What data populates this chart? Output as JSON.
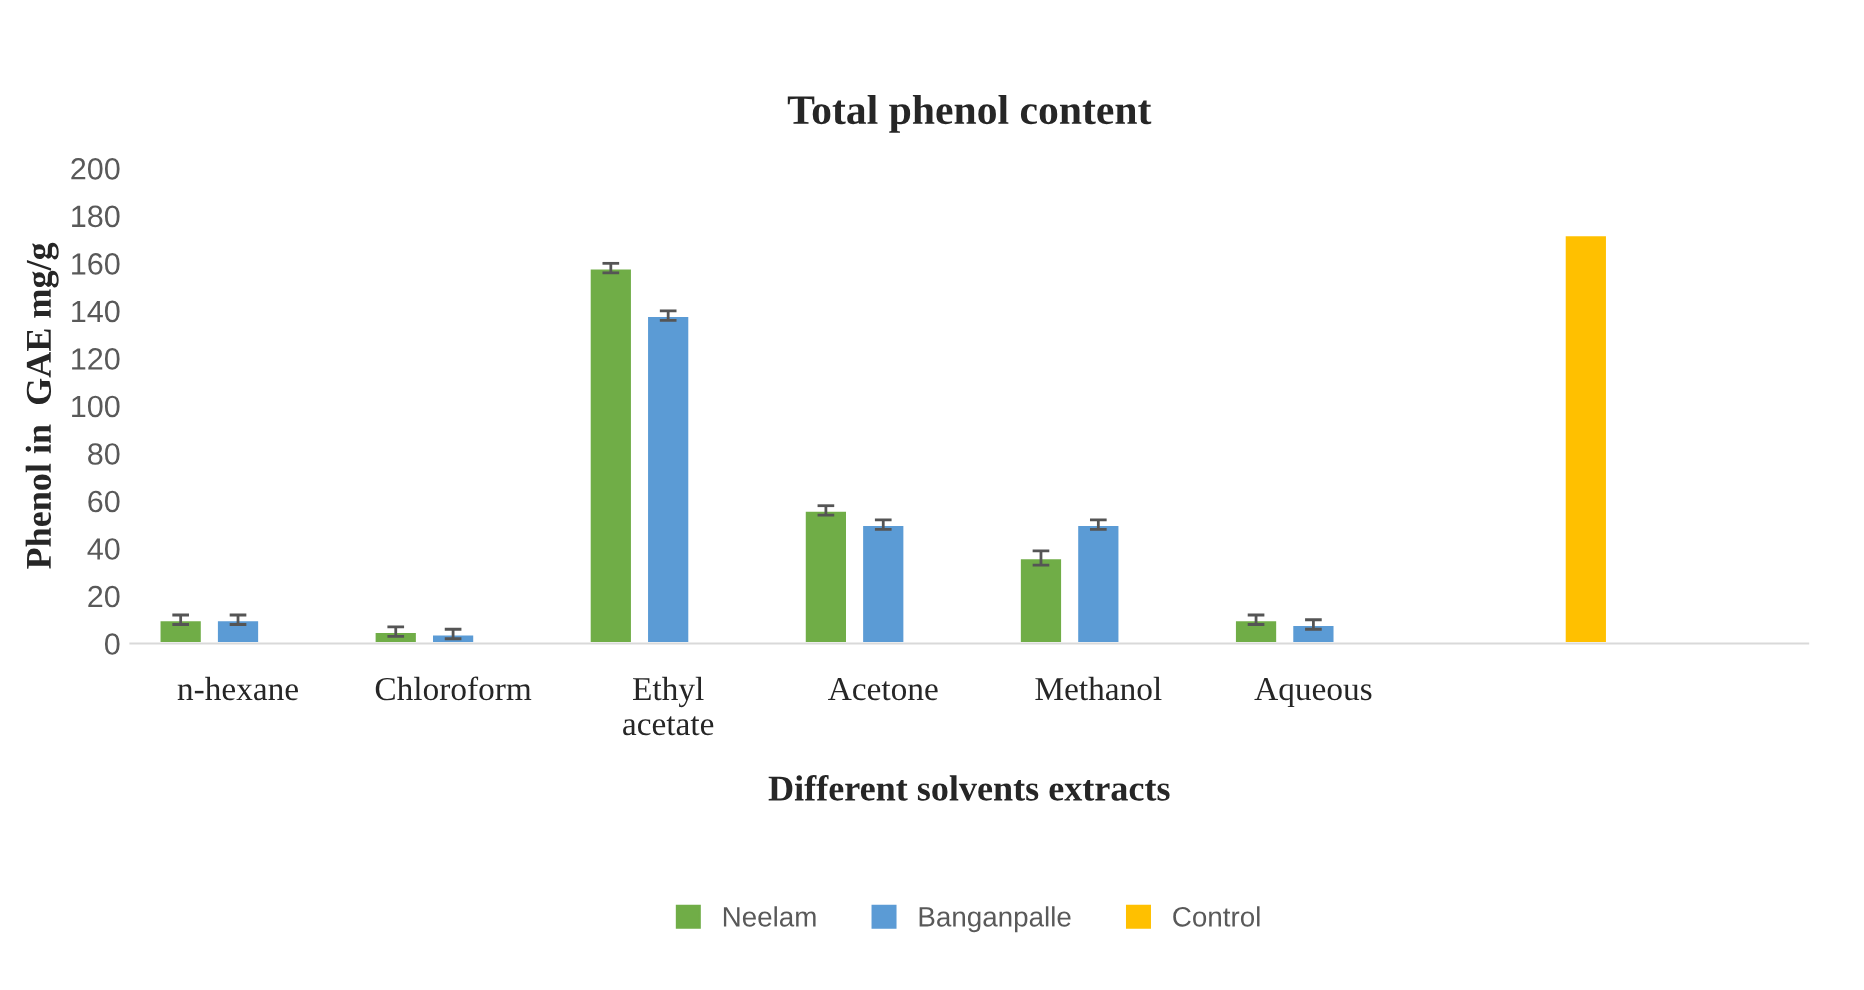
{
  "chart_data": {
    "type": "bar",
    "title": "Total phenol content",
    "xlabel": "Different solvents extracts",
    "ylabel": "Phenol in  GAE mg/g",
    "categories": [
      "n-hexane",
      "Chloroform",
      "Ethyl acetate",
      "Acetone",
      "Methanol",
      "Aqueous",
      null
    ],
    "series": [
      {
        "name": "Neelam",
        "color": "#70ad47",
        "values": [
          10,
          5,
          158,
          56,
          36,
          10,
          null
        ],
        "errors": [
          2,
          2,
          2,
          2,
          3,
          2,
          null
        ]
      },
      {
        "name": "Banganpalle",
        "color": "#5b9bd5",
        "values": [
          10,
          4,
          138,
          50,
          50,
          8,
          null
        ],
        "errors": [
          2,
          2,
          2,
          2,
          2,
          2,
          null
        ]
      },
      {
        "name": "Control",
        "color": "#ffc000",
        "values": [
          null,
          null,
          null,
          null,
          null,
          null,
          172
        ]
      }
    ],
    "ylim": [
      0,
      200
    ],
    "yticks": [
      0,
      20,
      40,
      60,
      80,
      100,
      120,
      140,
      160,
      180,
      200
    ],
    "grid": false,
    "legend": "bottom"
  }
}
